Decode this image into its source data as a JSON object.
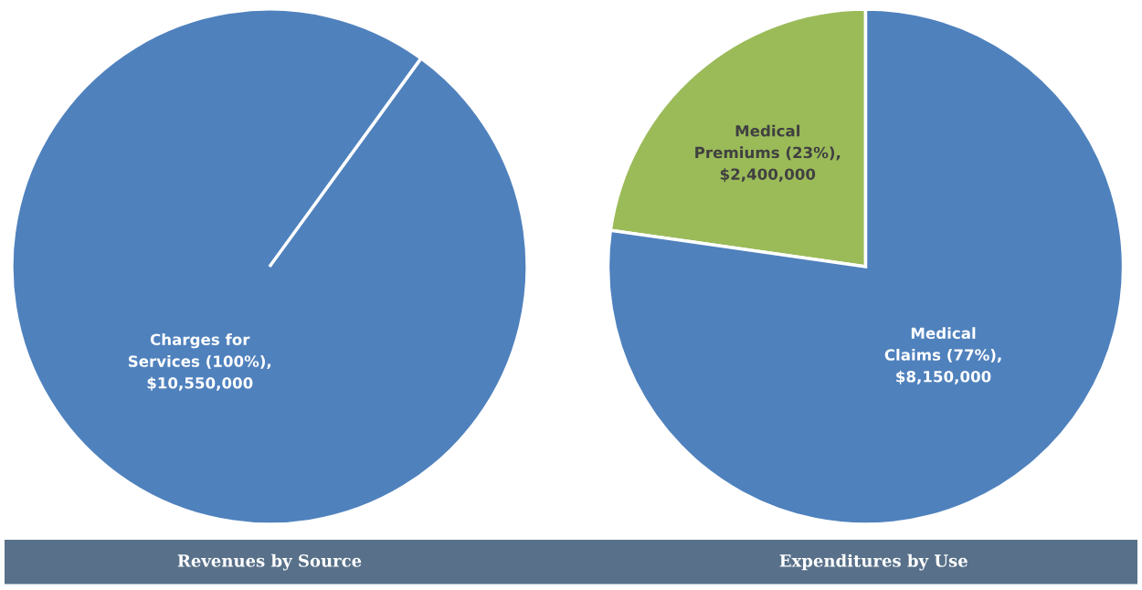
{
  "chart_data": [
    {
      "type": "pie",
      "title": "Revenues by Source",
      "categories": [
        "Charges for\nServices"
      ],
      "values": [
        10550000
      ],
      "colors": [
        "#4f81bd"
      ],
      "value_labels": [
        "(100%),\n$10,550,000"
      ],
      "data_labels": false,
      "legend": false
    },
    {
      "type": "pie",
      "title": "Expenditures by Use",
      "categories": [
        "Medical\nPremiums",
        "Medical\nClaims"
      ],
      "values": [
        2400000,
        8150000
      ],
      "colors": [
        "#9bbb59",
        "#4f81bd"
      ],
      "value_labels": [
        "(23%),\n$2,400,000",
        "(77%),\n$8,150,000"
      ],
      "data_labels": false,
      "legend": false
    }
  ]
}
